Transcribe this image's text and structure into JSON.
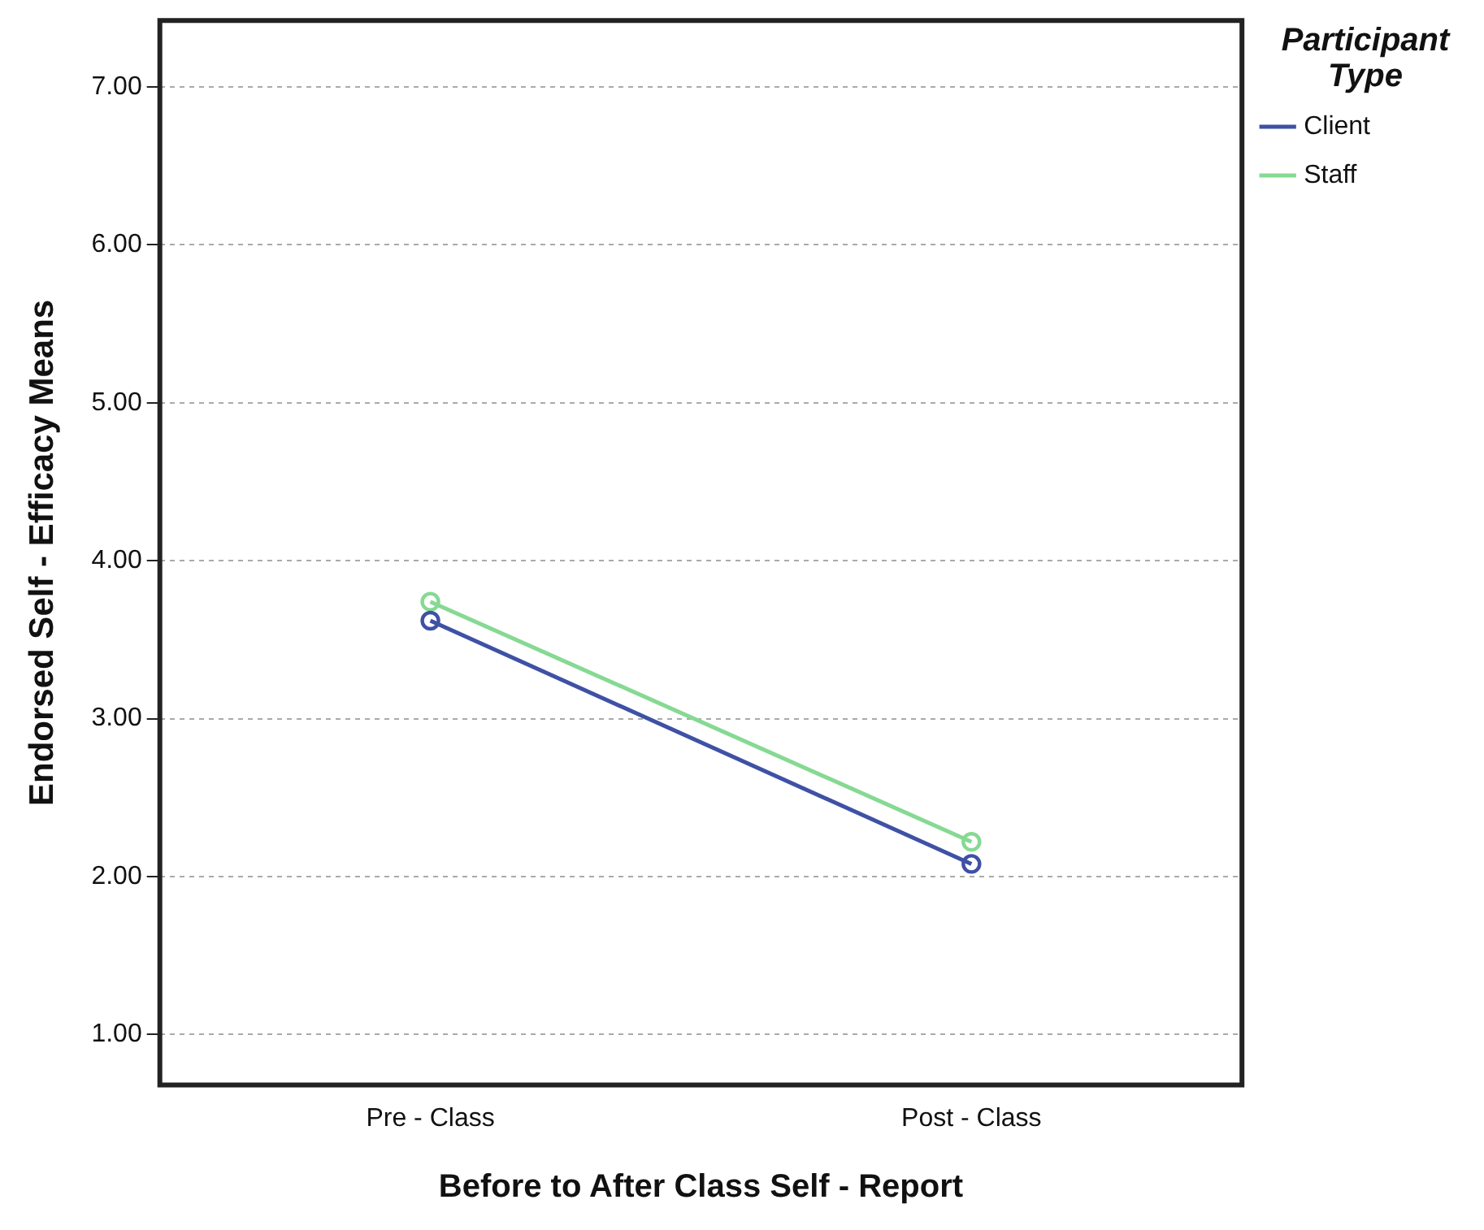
{
  "chart_data": {
    "type": "line",
    "xlabel": "Before to After Class Self - Report",
    "ylabel": "Endorsed Self - Efficacy Means",
    "legend_title": "Participant Type",
    "categories": [
      "Pre - Class",
      "Post - Class"
    ],
    "series": [
      {
        "name": "Client",
        "color": "#3f51a5",
        "values": [
          3.62,
          2.08
        ]
      },
      {
        "name": "Staff",
        "color": "#86d993",
        "values": [
          3.74,
          2.22
        ]
      }
    ],
    "ylim": [
      0.68,
      7.42
    ],
    "yticks": [
      {
        "value": 1,
        "label": "1.00"
      },
      {
        "value": 2,
        "label": "2.00"
      },
      {
        "value": 3,
        "label": "3.00"
      },
      {
        "value": 4,
        "label": "4.00"
      },
      {
        "value": 5,
        "label": "5.00"
      },
      {
        "value": 6,
        "label": "6.00"
      },
      {
        "value": 7,
        "label": "7.00"
      }
    ],
    "grid": "y",
    "legend": "right",
    "marker": "circle"
  }
}
